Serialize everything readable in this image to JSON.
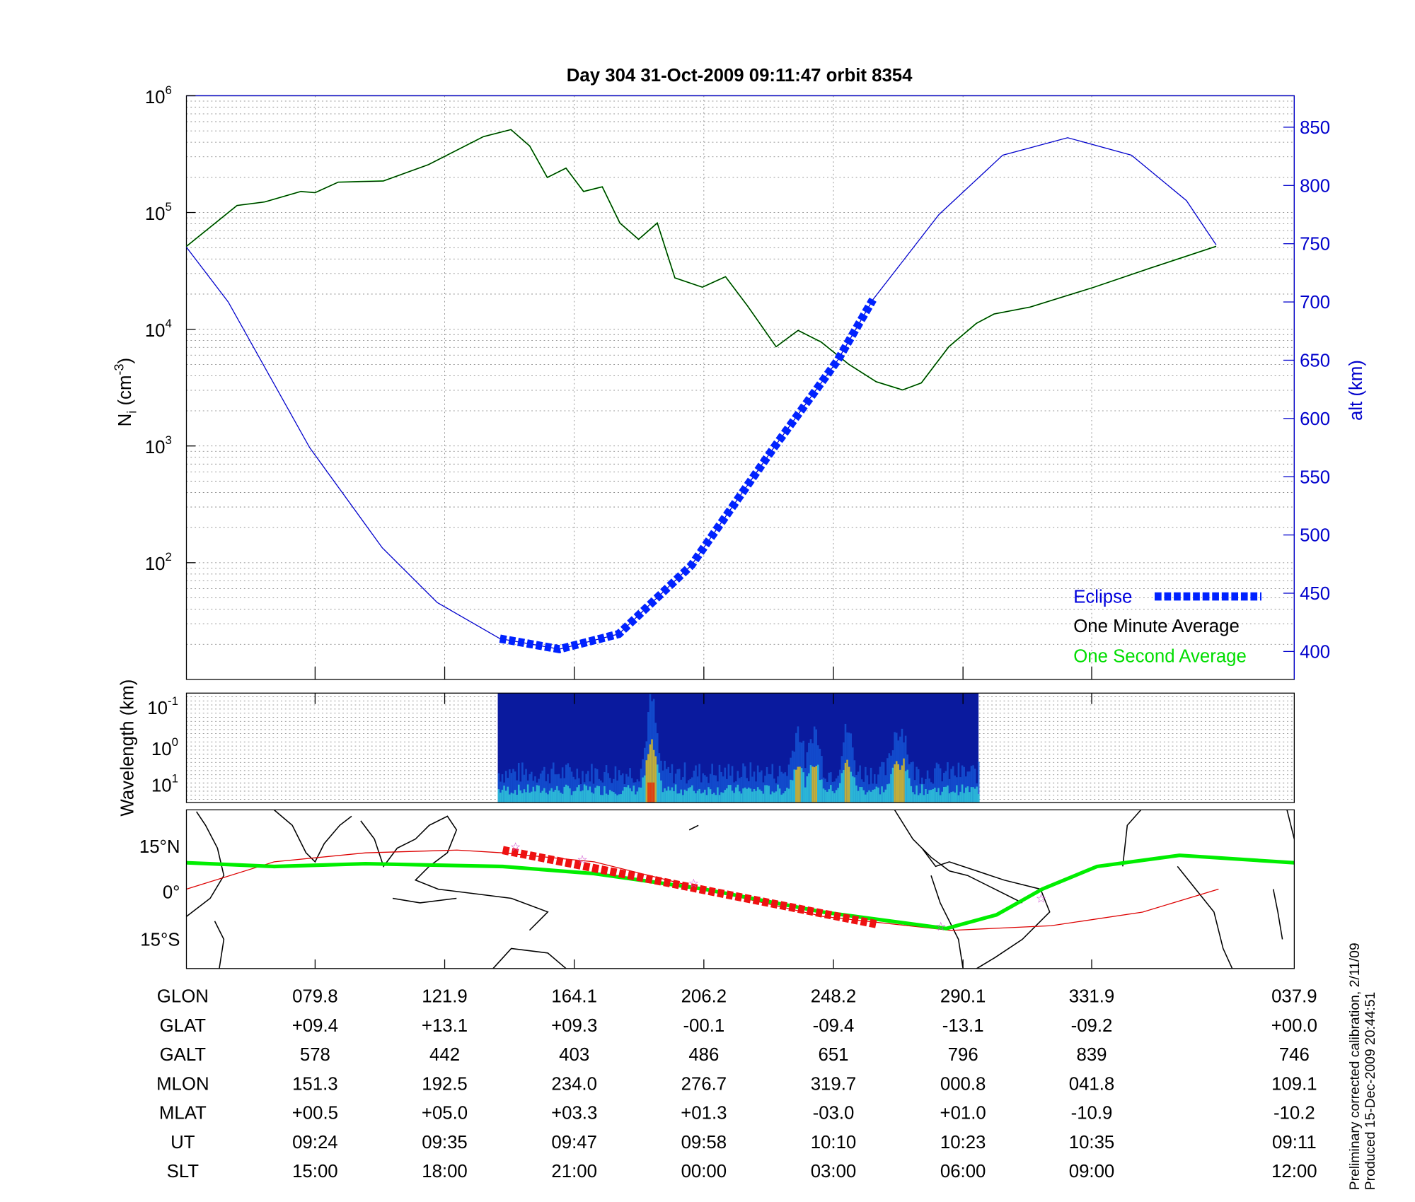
{
  "title": "Day 304  31-Oct-2009 09:11:47   orbit 8354",
  "colors": {
    "altitude": "#0000cc",
    "eclipse": "#0022ff",
    "minute_avg": "#000000",
    "second_avg": "#00dd00",
    "track_green": "#00ee00",
    "track_red": "#dd0000",
    "marker": "#cc44cc"
  },
  "footnote": [
    "Preliminary corrected calibration, 2/11/09",
    "Produced 15-Dec-2009 20:44:51"
  ],
  "chart_data": [
    {
      "type": "line",
      "name": "density-altitude",
      "x_units": "minutes after 09:11:47 UT",
      "xlim": [
        0,
        100.7
      ],
      "ylabel": "N",
      "ylabel_sub": "i",
      "ylabel_unit_pre": " (cm",
      "ylabel_unit_exp": "-3",
      "ylabel_unit_post": ")",
      "yscale": "log",
      "ylim_log10": [
        1,
        6
      ],
      "yticks": [
        {
          "base": "10",
          "exp": "6"
        },
        {
          "base": "10",
          "exp": "5"
        },
        {
          "base": "10",
          "exp": "4"
        },
        {
          "base": "10",
          "exp": "3"
        },
        {
          "base": "10",
          "exp": "2"
        }
      ],
      "ytick_log10": [
        6,
        5,
        4,
        3,
        2
      ],
      "y2label": "alt (km)",
      "y2lim": [
        376,
        877
      ],
      "y2ticks": [
        "850",
        "800",
        "750",
        "700",
        "650",
        "600",
        "550",
        "500",
        "450",
        "400"
      ],
      "grid": true,
      "legend_position": "bottom-right",
      "legend": [
        "Eclipse",
        "One Minute Average",
        "One Second Average"
      ],
      "density_log10": {
        "x": [
          0,
          4.6,
          7.1,
          10.4,
          11.7,
          13.8,
          17.9,
          22,
          27,
          29.5,
          31.2,
          32.8,
          34.5,
          36.1,
          37.8,
          39.4,
          41.1,
          42.8,
          44.4,
          46.9,
          49,
          51,
          53.6,
          55.6,
          57.7,
          60.2,
          62.7,
          65.1,
          66.8,
          69.3,
          71.8,
          73.4,
          76.7,
          82.5,
          87.5,
          93.6
        ],
        "y": [
          4.71,
          5.06,
          5.09,
          5.18,
          5.17,
          5.26,
          5.27,
          5.41,
          5.65,
          5.71,
          5.57,
          5.3,
          5.38,
          5.18,
          5.22,
          4.91,
          4.77,
          4.91,
          4.44,
          4.36,
          4.45,
          4.2,
          3.85,
          3.99,
          3.89,
          3.7,
          3.55,
          3.48,
          3.54,
          3.85,
          4.05,
          4.13,
          4.19,
          4.36,
          4.52,
          4.71
        ]
      },
      "altitude_km": {
        "x": [
          0,
          3.8,
          11.2,
          17.8,
          22.8,
          28.5,
          33.9,
          39.3,
          45.9,
          53.4,
          59.2,
          62.4,
          68.4,
          74.2,
          80.1,
          85.9,
          90.9,
          93.6
        ],
        "y": [
          747,
          700,
          575,
          489,
          442,
          411,
          402,
          415,
          474,
          575,
          650,
          702,
          775,
          826,
          841,
          826,
          787,
          749
        ]
      },
      "eclipse_range": [
        28.5,
        62.4
      ]
    },
    {
      "type": "heatmap",
      "name": "wavelength-spectrogram",
      "ylabel": "Wavelength (km)",
      "yticks": [
        {
          "base": "10",
          "exp": "-1"
        },
        {
          "base": "10",
          "exp": "0"
        },
        {
          "base": "10",
          "exp": "1"
        }
      ],
      "data_range_minutes": [
        28.3,
        72.0
      ],
      "intensity_peaks_minutes": [
        42.2,
        55.5,
        57.0,
        60.0,
        65.0,
        64.5
      ]
    },
    {
      "type": "line",
      "name": "ground-track-map",
      "yticks": [
        "15°N",
        "0°",
        "15°S"
      ],
      "lon_range": [
        37.9,
        397.9
      ],
      "lat_range": [
        -25,
        26
      ],
      "magnetic_equator": {
        "lon": [
          37.9,
          66.4,
          96.1,
          140.7,
          170.4,
          206.1,
          244.7,
          284.8,
          301.1,
          316.0,
          333.8,
          360.6,
          397.9
        ],
        "lat": [
          9.4,
          8.2,
          9.1,
          8.2,
          5.9,
          0.9,
          -6.5,
          -11.8,
          -7.4,
          0.9,
          8.2,
          11.8,
          9.4
        ]
      },
      "orbit_track": {
        "lon": [
          37.9,
          66.4,
          96.1,
          125.8,
          140.7,
          170.4,
          206.1,
          244.7,
          286.3,
          318.9,
          348.6,
          373.3
        ],
        "lat": [
          0.9,
          9.7,
          12.6,
          13.5,
          12.6,
          9.7,
          0.9,
          -7.9,
          -12.4,
          -10.9,
          -6.5,
          0.9
        ]
      },
      "eclipse_lon_range": [
        140.7,
        262.6
      ],
      "markers": {
        "lon": [
          144.8,
          166.5,
          202.7,
          283,
          315.6
        ],
        "lat": [
          14.7,
          10.6,
          2.9,
          -11,
          -2
        ]
      }
    }
  ],
  "table": {
    "rows": [
      {
        "label": "GLON",
        "values": [
          "079.8",
          "121.9",
          "164.1",
          "206.2",
          "248.2",
          "290.1",
          "331.9",
          "037.9"
        ]
      },
      {
        "label": "GLAT",
        "values": [
          "+09.4",
          "+13.1",
          "+09.3",
          "-00.1",
          "-09.4",
          "-13.1",
          "-09.2",
          "+00.0"
        ]
      },
      {
        "label": "GALT",
        "values": [
          "578",
          "442",
          "403",
          "486",
          "651",
          "796",
          "839",
          "746"
        ]
      },
      {
        "label": "MLON",
        "values": [
          "151.3",
          "192.5",
          "234.0",
          "276.7",
          "319.7",
          "000.8",
          "041.8",
          "109.1"
        ]
      },
      {
        "label": "MLAT",
        "values": [
          "+00.5",
          "+05.0",
          "+03.3",
          "+01.3",
          "-03.0",
          "+01.0",
          "-10.9",
          "-10.2"
        ]
      },
      {
        "label": "UT",
        "values": [
          "09:24",
          "09:35",
          "09:47",
          "09:58",
          "10:10",
          "10:23",
          "10:35",
          "09:11"
        ]
      },
      {
        "label": "SLT",
        "values": [
          "15:00",
          "18:00",
          "21:00",
          "00:00",
          "03:00",
          "06:00",
          "09:00",
          "12:00"
        ]
      }
    ]
  }
}
